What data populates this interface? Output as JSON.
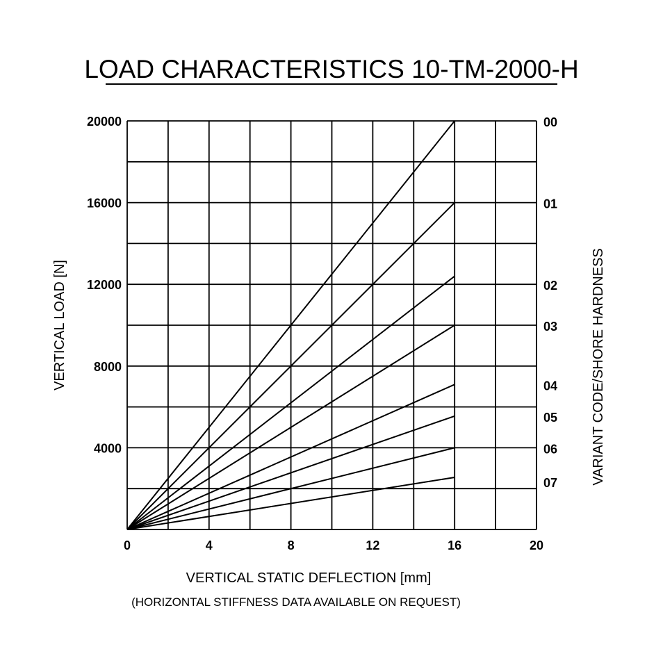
{
  "chart_data": {
    "type": "line",
    "title": "LOAD CHARACTERISTICS 10-TM-2000-H",
    "xlabel": "VERTICAL STATIC DEFLECTION [mm]",
    "ylabel": "VERTICAL LOAD [N]",
    "y2label": "VARIANT CODE/SHORE HARDNESS",
    "note": "(HORIZONTAL STIFFNESS DATA AVAILABLE ON REQUEST)",
    "xlim": [
      0,
      20
    ],
    "ylim": [
      0,
      20000
    ],
    "x_ticks": [
      "0",
      "4",
      "8",
      "12",
      "16",
      "20"
    ],
    "y_ticks": [
      "4000",
      "8000",
      "12000",
      "16000",
      "20000"
    ],
    "y_tick_values": [
      4000,
      8000,
      12000,
      16000,
      20000
    ],
    "grid": true,
    "series": [
      {
        "name": "00",
        "x": [
          0,
          16
        ],
        "y": [
          0,
          20000
        ]
      },
      {
        "name": "01",
        "x": [
          0,
          16
        ],
        "y": [
          0,
          16000
        ]
      },
      {
        "name": "02",
        "x": [
          0,
          16
        ],
        "y": [
          0,
          12400
        ]
      },
      {
        "name": "03",
        "x": [
          0,
          16
        ],
        "y": [
          0,
          10000
        ]
      },
      {
        "name": "04",
        "x": [
          0,
          16
        ],
        "y": [
          0,
          7100
        ]
      },
      {
        "name": "05",
        "x": [
          0,
          16
        ],
        "y": [
          0,
          5550
        ]
      },
      {
        "name": "06",
        "x": [
          0,
          16
        ],
        "y": [
          0,
          4000
        ]
      },
      {
        "name": "07",
        "x": [
          0,
          16
        ],
        "y": [
          0,
          2550
        ]
      }
    ],
    "right_labels": [
      {
        "text": "00",
        "y": 20000
      },
      {
        "text": "01",
        "y": 16000
      },
      {
        "text": "02",
        "y": 12000
      },
      {
        "text": "03",
        "y": 10000
      },
      {
        "text": "04",
        "y": 7100
      },
      {
        "text": "05",
        "y": 5550
      },
      {
        "text": "06",
        "y": 4000
      },
      {
        "text": "07",
        "y": 2350
      }
    ]
  }
}
